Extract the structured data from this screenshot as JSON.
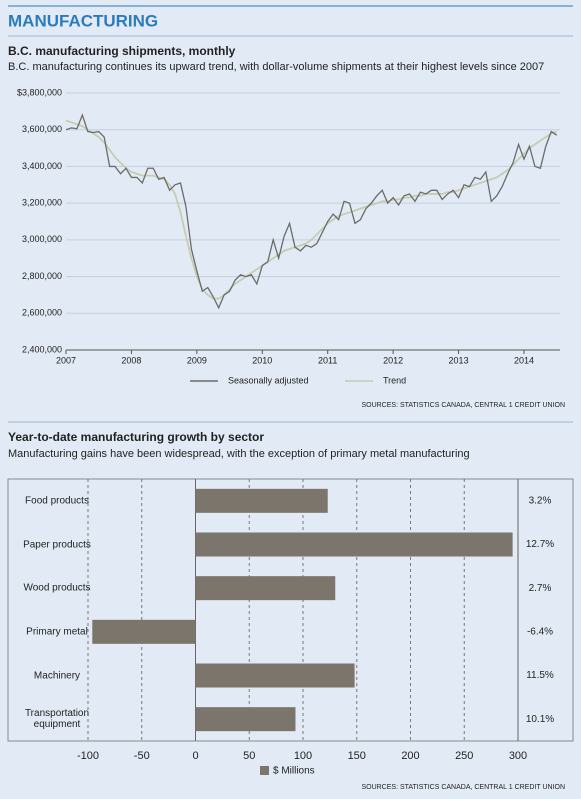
{
  "header": {
    "title": "MANUFACTURING"
  },
  "chart_data": [
    {
      "type": "line",
      "title": "B.C. manufacturing shipments, monthly",
      "subtitle": "B.C. manufacturing continues its upward trend, with dollar-volume shipments at their highest levels since 2007",
      "categories": [
        "2007",
        null,
        null,
        null,
        null,
        null,
        null,
        null,
        null,
        null,
        null,
        null,
        "2008",
        null,
        null,
        null,
        null,
        null,
        null,
        null,
        null,
        null,
        null,
        null,
        "2009",
        null,
        null,
        null,
        null,
        null,
        null,
        null,
        null,
        null,
        null,
        null,
        "2010",
        null,
        null,
        null,
        null,
        null,
        null,
        null,
        null,
        null,
        null,
        null,
        "2011",
        null,
        null,
        null,
        null,
        null,
        null,
        null,
        null,
        null,
        null,
        null,
        "2012",
        null,
        null,
        null,
        null,
        null,
        null,
        null,
        null,
        null,
        null,
        null,
        "2013",
        null,
        null,
        null,
        null,
        null,
        null,
        null,
        null,
        null,
        null,
        null,
        "2014",
        null,
        null,
        null,
        null,
        null,
        null
      ],
      "series": [
        {
          "name": "Seasonally adjusted",
          "color": "#6b6b6b",
          "values": [
            3600000,
            3610000,
            3605000,
            3680000,
            3590000,
            3585000,
            3590000,
            3560000,
            3400000,
            3400000,
            3360000,
            3390000,
            3340000,
            3340000,
            3310000,
            3390000,
            3390000,
            3330000,
            3340000,
            3270000,
            3300000,
            3310000,
            3180000,
            2950000,
            2830000,
            2720000,
            2740000,
            2690000,
            2630000,
            2700000,
            2720000,
            2780000,
            2810000,
            2800000,
            2810000,
            2760000,
            2860000,
            2880000,
            3000000,
            2900000,
            3020000,
            3090000,
            2960000,
            2940000,
            2970000,
            2960000,
            2980000,
            3040000,
            3100000,
            3140000,
            3110000,
            3210000,
            3200000,
            3090000,
            3110000,
            3170000,
            3200000,
            3240000,
            3270000,
            3200000,
            3230000,
            3190000,
            3240000,
            3250000,
            3210000,
            3260000,
            3250000,
            3270000,
            3270000,
            3220000,
            3250000,
            3270000,
            3230000,
            3300000,
            3290000,
            3340000,
            3330000,
            3370000,
            3210000,
            3240000,
            3290000,
            3360000,
            3420000,
            3520000,
            3440000,
            3510000,
            3400000,
            3390000,
            3510000,
            3590000,
            3570000
          ]
        },
        {
          "name": "Trend",
          "color": "#c5cdb0",
          "values": [
            3650000,
            3640000,
            3630000,
            3620000,
            3600000,
            3580000,
            3560000,
            3530000,
            3490000,
            3450000,
            3420000,
            3390000,
            3370000,
            3360000,
            3350000,
            3350000,
            3350000,
            3340000,
            3330000,
            3300000,
            3250000,
            3150000,
            3020000,
            2900000,
            2800000,
            2730000,
            2700000,
            2680000,
            2680000,
            2700000,
            2730000,
            2760000,
            2780000,
            2800000,
            2820000,
            2840000,
            2860000,
            2880000,
            2900000,
            2920000,
            2940000,
            2950000,
            2960000,
            2970000,
            2980000,
            3000000,
            3030000,
            3060000,
            3090000,
            3110000,
            3130000,
            3140000,
            3150000,
            3160000,
            3170000,
            3180000,
            3190000,
            3200000,
            3210000,
            3210000,
            3220000,
            3220000,
            3230000,
            3230000,
            3240000,
            3240000,
            3250000,
            3250000,
            3250000,
            3250000,
            3260000,
            3260000,
            3270000,
            3280000,
            3290000,
            3300000,
            3310000,
            3320000,
            3330000,
            3340000,
            3360000,
            3380000,
            3410000,
            3440000,
            3470000,
            3500000,
            3520000,
            3540000,
            3560000,
            3580000,
            3590000
          ]
        }
      ],
      "ylim": [
        2400000,
        3800000
      ],
      "yticks": [
        {
          "value": 2400000,
          "label": "2,400,000"
        },
        {
          "value": 2600000,
          "label": "2,600,000"
        },
        {
          "value": 2800000,
          "label": "2,800,000"
        },
        {
          "value": 3000000,
          "label": "3,000,000"
        },
        {
          "value": 3200000,
          "label": "3,200,000"
        },
        {
          "value": 3400000,
          "label": "3,400,000"
        },
        {
          "value": 3600000,
          "label": "3,600,000"
        },
        {
          "value": 3800000,
          "label": "$3,800,000"
        }
      ],
      "grid": true,
      "source": "SOURCES: STATISTICS CANADA, CENTRAL 1 CREDIT UNION"
    },
    {
      "type": "hbar",
      "title": "Year-to-date manufacturing growth by sector",
      "subtitle": "Manufacturing gains have been widespread, with the exception of primary metal manufacturing",
      "categories": [
        "Food products",
        "Paper products",
        "Wood products",
        "Primary metal",
        "Machinery",
        "Transportation equipment"
      ],
      "series": [
        {
          "name": "$ Millions",
          "color": "#7b756c",
          "values": [
            123,
            295,
            130,
            -96,
            148,
            93
          ]
        }
      ],
      "growth": {
        "values": [
          3.2,
          12.7,
          2.7,
          -6.4,
          11.5,
          10.1
        ],
        "value_labels": [
          "3.2%",
          "12.7%",
          "2.7%",
          "-6.4%",
          "11.5%",
          "10.1%"
        ]
      },
      "xlim": [
        -100,
        300
      ],
      "xticks": [
        -100,
        -50,
        0,
        50,
        100,
        150,
        200,
        250,
        300
      ],
      "grid": true,
      "source": "SOURCES: STATISTICS CANADA, CENTRAL 1 CREDIT UNION"
    }
  ]
}
